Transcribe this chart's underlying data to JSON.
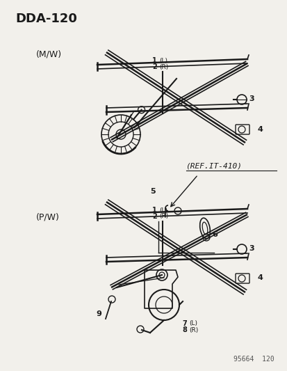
{
  "title": "DDA-120",
  "bg_color": "#f2f0eb",
  "line_color": "#1a1a1a",
  "label_color": "#1a1a1a",
  "top_section_label": "(M/W)",
  "bottom_section_label": "(P/W)",
  "ref_text": "(REF.IT-410)",
  "footer_text": "95664  120",
  "figsize": [
    4.14,
    5.33
  ],
  "dpi": 100
}
